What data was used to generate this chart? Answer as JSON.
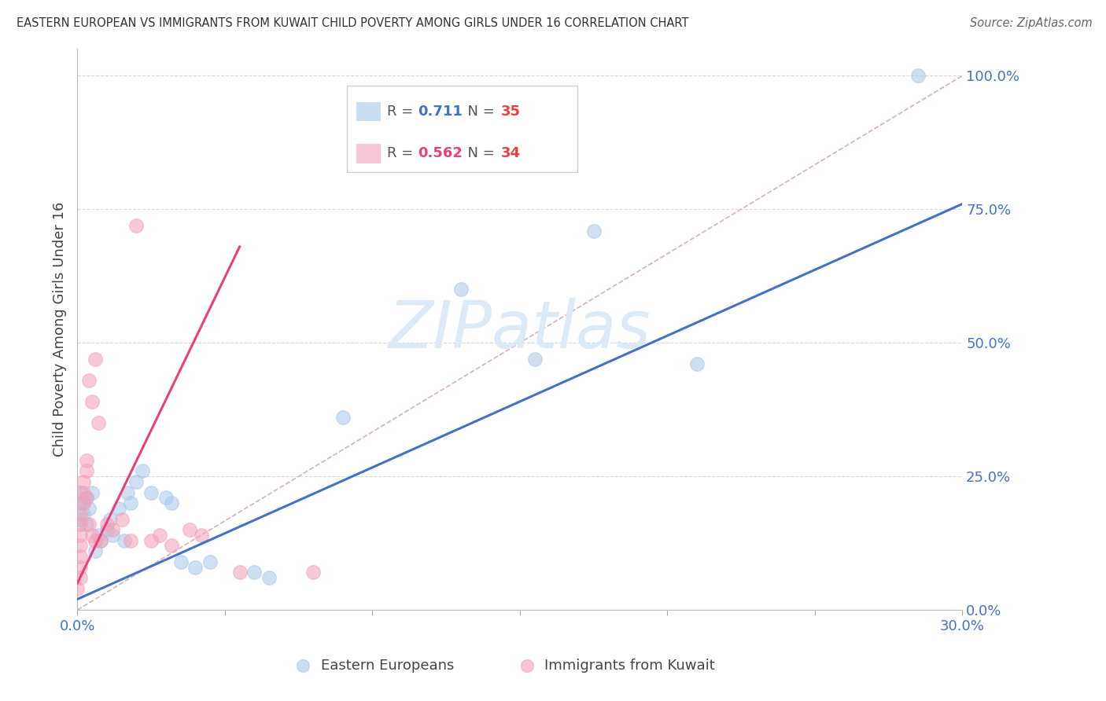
{
  "title": "EASTERN EUROPEAN VS IMMIGRANTS FROM KUWAIT CHILD POVERTY AMONG GIRLS UNDER 16 CORRELATION CHART",
  "source": "Source: ZipAtlas.com",
  "ylabel": "Child Poverty Among Girls Under 16",
  "watermark": "ZIPatlas",
  "r1": 0.711,
  "n1": 35,
  "r2": 0.562,
  "n2": 34,
  "xmin": 0.0,
  "xmax": 0.3,
  "ymin": 0.0,
  "ymax": 1.05,
  "ytick_labels": [
    "0.0%",
    "25.0%",
    "50.0%",
    "75.0%",
    "100.0%"
  ],
  "ytick_vals": [
    0.0,
    0.25,
    0.5,
    0.75,
    1.0
  ],
  "xtick_vals": [
    0.0,
    0.05,
    0.1,
    0.15,
    0.2,
    0.25,
    0.3
  ],
  "xtick_labels": [
    "0.0%",
    "",
    "",
    "",
    "",
    "",
    "30.0%"
  ],
  "blue_points_x": [
    0.001,
    0.001,
    0.001,
    0.002,
    0.002,
    0.003,
    0.003,
    0.004,
    0.005,
    0.006,
    0.007,
    0.008,
    0.01,
    0.011,
    0.012,
    0.014,
    0.016,
    0.017,
    0.018,
    0.02,
    0.022,
    0.025,
    0.03,
    0.032,
    0.035,
    0.04,
    0.045,
    0.06,
    0.065,
    0.09,
    0.13,
    0.155,
    0.175,
    0.21,
    0.285
  ],
  "blue_points_y": [
    0.2,
    0.17,
    0.22,
    0.18,
    0.2,
    0.21,
    0.16,
    0.19,
    0.22,
    0.11,
    0.14,
    0.13,
    0.15,
    0.17,
    0.14,
    0.19,
    0.13,
    0.22,
    0.2,
    0.24,
    0.26,
    0.22,
    0.21,
    0.2,
    0.09,
    0.08,
    0.09,
    0.07,
    0.06,
    0.36,
    0.6,
    0.47,
    0.71,
    0.46,
    1.0
  ],
  "pink_points_x": [
    0.0,
    0.001,
    0.001,
    0.001,
    0.001,
    0.001,
    0.001,
    0.001,
    0.002,
    0.002,
    0.002,
    0.003,
    0.003,
    0.003,
    0.004,
    0.004,
    0.005,
    0.005,
    0.006,
    0.006,
    0.007,
    0.008,
    0.01,
    0.012,
    0.015,
    0.018,
    0.02,
    0.025,
    0.028,
    0.032,
    0.038,
    0.042,
    0.055,
    0.08
  ],
  "pink_points_y": [
    0.04,
    0.06,
    0.08,
    0.1,
    0.12,
    0.14,
    0.16,
    0.18,
    0.2,
    0.22,
    0.24,
    0.26,
    0.28,
    0.21,
    0.43,
    0.16,
    0.39,
    0.14,
    0.47,
    0.13,
    0.35,
    0.13,
    0.16,
    0.15,
    0.17,
    0.13,
    0.72,
    0.13,
    0.14,
    0.12,
    0.15,
    0.14,
    0.07,
    0.07
  ],
  "blue_line_x": [
    0.0,
    0.3
  ],
  "blue_line_y": [
    0.02,
    0.76
  ],
  "pink_line_x": [
    0.0,
    0.055
  ],
  "pink_line_y": [
    0.05,
    0.68
  ],
  "diag_line_x": [
    0.0,
    0.3
  ],
  "diag_line_y": [
    0.0,
    1.0
  ],
  "blue_dot_color": "#a8c8e8",
  "pink_dot_color": "#f4a0b8",
  "blue_line_color": "#4472c4",
  "pink_line_color": "#e8407a",
  "diagonal_color": "#d8b0b8",
  "grid_color": "#d8d8d8",
  "title_color": "#333333",
  "axis_label_color": "#444444",
  "tick_label_color": "#4472c4",
  "source_color": "#666666",
  "watermark_color": "#dce9f7",
  "background_color": "#ffffff",
  "legend_r1_color": "#4472c4",
  "legend_r2_color": "#e8407a",
  "legend_n1_color": "#e84040",
  "legend_n2_color": "#e84040"
}
